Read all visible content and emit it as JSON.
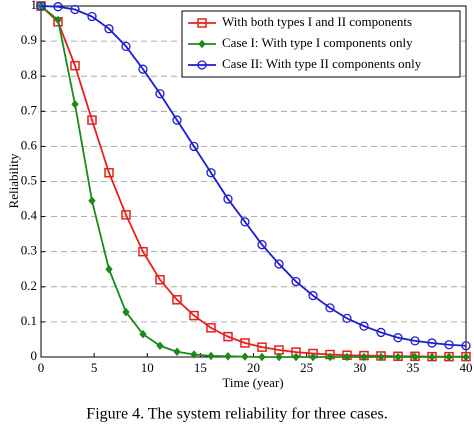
{
  "chart_data": {
    "type": "line",
    "caption": "Figure 4. The system reliability for three cases.",
    "xlabel": "Time (year)",
    "ylabel": "Reliability",
    "x": [
      0,
      1.6,
      3.2,
      4.8,
      6.4,
      8,
      9.6,
      11.2,
      12.8,
      14.4,
      16,
      17.6,
      19.2,
      20.8,
      22.4,
      24,
      25.6,
      27.2,
      28.8,
      30.4,
      32,
      33.6,
      35.2,
      36.8,
      38.4,
      40
    ],
    "series": [
      {
        "name": "With both types I and II components",
        "color": "#e8201c",
        "marker": "square",
        "values": [
          1,
          0.955,
          0.83,
          0.675,
          0.525,
          0.405,
          0.3,
          0.22,
          0.163,
          0.118,
          0.083,
          0.058,
          0.04,
          0.028,
          0.02,
          0.014,
          0.01,
          0.007,
          0.005,
          0.004,
          0.003,
          0.002,
          0.002,
          0.001,
          0.001,
          0.001
        ]
      },
      {
        "name": "Case I: With type I components only",
        "color": "#1a8a1a",
        "marker": "diamond",
        "values": [
          1,
          0.96,
          0.72,
          0.445,
          0.25,
          0.128,
          0.065,
          0.032,
          0.015,
          0.007,
          0.003,
          0.002,
          0.001,
          0,
          0,
          0,
          0,
          0,
          0,
          0,
          0,
          0,
          0,
          0,
          0,
          0
        ]
      },
      {
        "name": "Case II: With type II components only",
        "color": "#1c1cd6",
        "marker": "circle",
        "values": [
          1,
          0.998,
          0.99,
          0.97,
          0.935,
          0.885,
          0.82,
          0.75,
          0.675,
          0.6,
          0.525,
          0.45,
          0.385,
          0.32,
          0.265,
          0.215,
          0.175,
          0.14,
          0.11,
          0.088,
          0.07,
          0.055,
          0.046,
          0.04,
          0.035,
          0.032
        ]
      }
    ],
    "xlim": [
      0,
      40
    ],
    "xticks": [
      0,
      5,
      10,
      15,
      20,
      25,
      30,
      35,
      40
    ],
    "ylim": [
      0,
      1
    ],
    "yticks": [
      0,
      0.1,
      0.2,
      0.3,
      0.4,
      0.5,
      0.6,
      0.7,
      0.8,
      0.9,
      1
    ],
    "grid": true,
    "legend": "upper right"
  }
}
